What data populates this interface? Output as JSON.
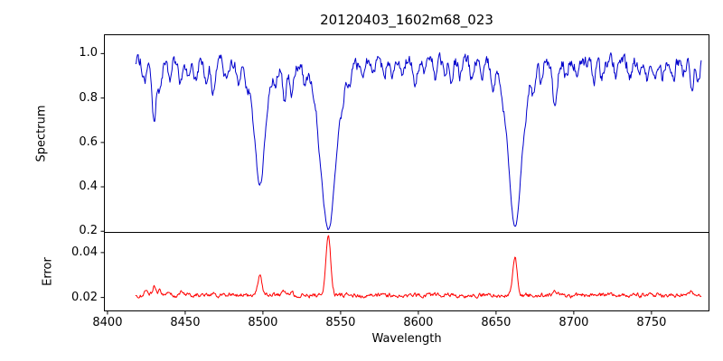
{
  "chart_data": {
    "type": "line",
    "title": "20120403_1602m68_023",
    "xlabel": "Wavelength",
    "x_range": [
      8398,
      8787
    ],
    "x_data_range": [
      8418,
      8782
    ],
    "x_ticks": [
      8400,
      8450,
      8500,
      8550,
      8600,
      8650,
      8700,
      8750
    ],
    "panels": [
      {
        "name": "spectrum",
        "ylabel": "Spectrum",
        "y_range": [
          0.195,
          1.085
        ],
        "y_ticks": [
          1.0,
          0.8,
          0.6,
          0.4,
          0.2
        ],
        "y_tick_labels": [
          "1.0",
          "0.8",
          "0.6",
          "0.4",
          "0.2"
        ],
        "line_color": "#0000cc",
        "continuum": 0.965,
        "noise_amplitude": 0.05,
        "noise_seed": 20120403,
        "absorption_lines": [
          [
            8424,
            0.1,
            1.1
          ],
          [
            8430,
            0.3,
            1.4
          ],
          [
            8434,
            0.13,
            1.1
          ],
          [
            8440,
            0.09,
            1.1
          ],
          [
            8447,
            0.12,
            1.1
          ],
          [
            8452,
            0.07,
            1.0
          ],
          [
            8457,
            0.09,
            1.0
          ],
          [
            8463,
            0.1,
            1.1
          ],
          [
            8468,
            0.14,
            1.2
          ],
          [
            8476,
            0.08,
            1.0
          ],
          [
            8484,
            0.1,
            1.0
          ],
          [
            8490,
            0.07,
            1.0
          ],
          [
            8498.02,
            0.52,
            3.2
          ],
          [
            8498.02,
            0.1,
            7.0
          ],
          [
            8508,
            0.07,
            1.0
          ],
          [
            8514,
            0.17,
            1.3
          ],
          [
            8518.5,
            0.14,
            1.2
          ],
          [
            8527,
            0.09,
            1.0
          ],
          [
            8536,
            0.07,
            1.0
          ],
          [
            8542.09,
            0.75,
            4.2
          ],
          [
            8542.09,
            0.16,
            9.0
          ],
          [
            8551,
            0.07,
            1.0
          ],
          [
            8556,
            0.08,
            1.0
          ],
          [
            8564,
            0.07,
            1.0
          ],
          [
            8571,
            0.06,
            1.0
          ],
          [
            8578,
            0.07,
            1.0
          ],
          [
            8583,
            0.09,
            1.0
          ],
          [
            8590,
            0.06,
            1.0
          ],
          [
            8598,
            0.11,
            1.1
          ],
          [
            8604,
            0.07,
            1.0
          ],
          [
            8611,
            0.09,
            1.0
          ],
          [
            8617,
            0.07,
            1.0
          ],
          [
            8621,
            0.1,
            1.0
          ],
          [
            8627,
            0.06,
            1.0
          ],
          [
            8634,
            0.07,
            1.0
          ],
          [
            8641,
            0.06,
            1.0
          ],
          [
            8648,
            0.09,
            1.0
          ],
          [
            8654,
            0.06,
            1.0
          ],
          [
            8662.14,
            0.73,
            3.8
          ],
          [
            8662.14,
            0.14,
            8.0
          ],
          [
            8669,
            0.07,
            1.0
          ],
          [
            8674,
            0.11,
            1.1
          ],
          [
            8679,
            0.09,
            1.0
          ],
          [
            8688,
            0.22,
            1.5
          ],
          [
            8695,
            0.07,
            1.0
          ],
          [
            8702,
            0.06,
            1.0
          ],
          [
            8713,
            0.1,
            1.1
          ],
          [
            8718,
            0.08,
            1.0
          ],
          [
            8727,
            0.06,
            1.0
          ],
          [
            8736,
            0.09,
            1.0
          ],
          [
            8742,
            0.06,
            1.0
          ],
          [
            8747,
            0.08,
            1.0
          ],
          [
            8752,
            0.06,
            1.0
          ],
          [
            8757,
            0.07,
            1.0
          ],
          [
            8764,
            0.09,
            1.0
          ],
          [
            8770,
            0.06,
            1.0
          ],
          [
            8776,
            0.11,
            1.1
          ],
          [
            8780,
            0.08,
            1.0
          ]
        ]
      },
      {
        "name": "error",
        "ylabel": "Error",
        "y_range": [
          0.014,
          0.049
        ],
        "y_ticks": [
          0.04,
          0.02
        ],
        "y_tick_labels": [
          "0.04",
          "0.02"
        ],
        "line_color": "#ff0000",
        "baseline": 0.021,
        "noise_amplitude": 0.0016,
        "noise_seed": 1602,
        "emission_peaks": [
          [
            8425,
            0.0025,
            1.2
          ],
          [
            8430,
            0.0035,
            1.0
          ],
          [
            8434,
            0.002,
            0.9
          ],
          [
            8440,
            0.0012,
            0.9
          ],
          [
            8447,
            0.0012,
            0.9
          ],
          [
            8468,
            0.001,
            0.9
          ],
          [
            8498.02,
            0.0085,
            1.5
          ],
          [
            8514,
            0.0018,
            1.0
          ],
          [
            8518.5,
            0.0012,
            1.0
          ],
          [
            8542.09,
            0.0265,
            1.5
          ],
          [
            8662.14,
            0.0172,
            1.4
          ],
          [
            8688,
            0.002,
            1.1
          ],
          [
            8776,
            0.0012,
            1.0
          ]
        ]
      }
    ]
  }
}
